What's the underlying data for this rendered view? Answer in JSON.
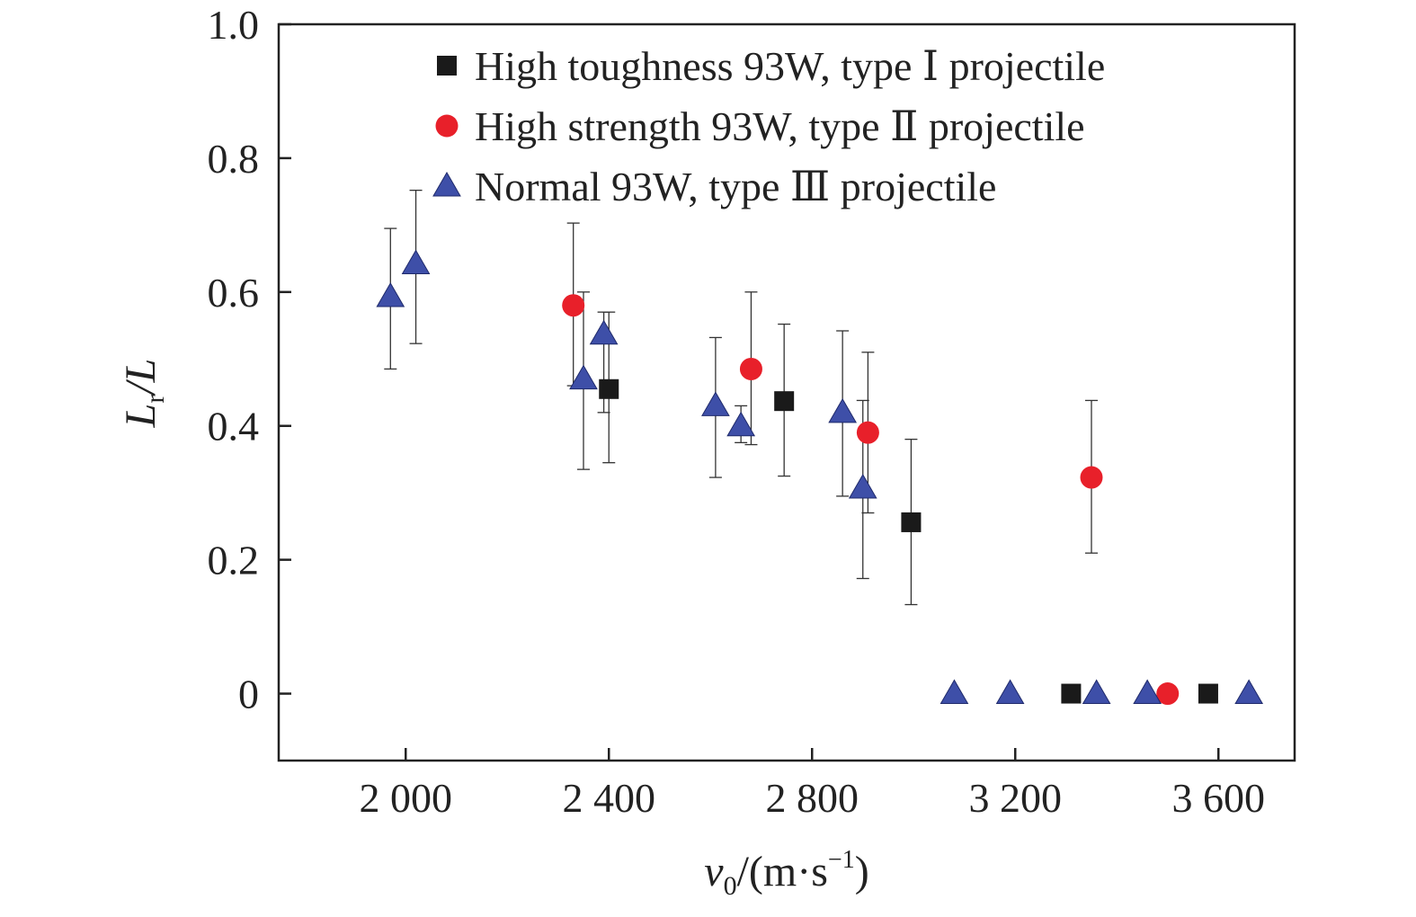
{
  "chart_data": {
    "type": "scatter",
    "title": "",
    "xlabel": {
      "var": "v",
      "sub": "0",
      "unit_pre": "/(m·s",
      "unit_sup": "−1",
      "unit_post": ")"
    },
    "ylabel": {
      "var": "L",
      "sub": "r",
      "rest": "/L"
    },
    "xlim": [
      1750,
      3750
    ],
    "ylim": [
      -0.1,
      1.0
    ],
    "x_ticks": [
      {
        "value": 2000,
        "label": "2 000"
      },
      {
        "value": 2400,
        "label": "2 400"
      },
      {
        "value": 2800,
        "label": "2 800"
      },
      {
        "value": 3200,
        "label": "3 200"
      },
      {
        "value": 3600,
        "label": "3 600"
      }
    ],
    "y_ticks": [
      {
        "value": 0,
        "label": "0"
      },
      {
        "value": 0.2,
        "label": "0.2"
      },
      {
        "value": 0.4,
        "label": "0.4"
      },
      {
        "value": 0.6,
        "label": "0.6"
      },
      {
        "value": 0.8,
        "label": "0.8"
      },
      {
        "value": 1.0,
        "label": "1.0"
      }
    ],
    "grid": false,
    "legend_position": "top-right",
    "series": [
      {
        "name": "High toughness 93W, type Ⅰ projectile",
        "marker": "square",
        "color": "#1a1a1a",
        "points": [
          {
            "x": 2400,
            "y": 0.455,
            "err_low": 0.345,
            "err_high": 0.57
          },
          {
            "x": 2745,
            "y": 0.437,
            "err_low": 0.325,
            "err_high": 0.552
          },
          {
            "x": 2995,
            "y": 0.256,
            "err_low": 0.133,
            "err_high": 0.38
          },
          {
            "x": 3310,
            "y": 0.0
          },
          {
            "x": 3580,
            "y": 0.0
          }
        ]
      },
      {
        "name": "High strength 93W, type Ⅱ projectile",
        "marker": "circle",
        "color": "#e8202a",
        "points": [
          {
            "x": 2330,
            "y": 0.58,
            "err_low": 0.46,
            "err_high": 0.703
          },
          {
            "x": 2680,
            "y": 0.485,
            "err_low": 0.372,
            "err_high": 0.6
          },
          {
            "x": 2910,
            "y": 0.39,
            "err_low": 0.27,
            "err_high": 0.51
          },
          {
            "x": 3350,
            "y": 0.323,
            "err_low": 0.21,
            "err_high": 0.438
          },
          {
            "x": 3500,
            "y": 0.0
          }
        ]
      },
      {
        "name": "Normal 93W, type Ⅲ projectile",
        "marker": "triangle",
        "color": "#3e4fa8",
        "points": [
          {
            "x": 1970,
            "y": 0.593,
            "err_low": 0.485,
            "err_high": 0.695
          },
          {
            "x": 2020,
            "y": 0.642,
            "err_low": 0.523,
            "err_high": 0.752
          },
          {
            "x": 2350,
            "y": 0.47,
            "err_low": 0.335,
            "err_high": 0.6
          },
          {
            "x": 2390,
            "y": 0.537,
            "err_low": 0.42,
            "err_high": 0.57
          },
          {
            "x": 2610,
            "y": 0.43,
            "err_low": 0.323,
            "err_high": 0.532
          },
          {
            "x": 2660,
            "y": 0.4,
            "err_low": 0.375,
            "err_high": 0.43
          },
          {
            "x": 2860,
            "y": 0.42,
            "err_low": 0.295,
            "err_high": 0.542
          },
          {
            "x": 2900,
            "y": 0.307,
            "err_low": 0.172,
            "err_high": 0.438
          },
          {
            "x": 3080,
            "y": 0.0
          },
          {
            "x": 3190,
            "y": 0.0
          },
          {
            "x": 3360,
            "y": 0.0
          },
          {
            "x": 3460,
            "y": 0.0
          },
          {
            "x": 3660,
            "y": 0.0
          }
        ]
      }
    ]
  }
}
